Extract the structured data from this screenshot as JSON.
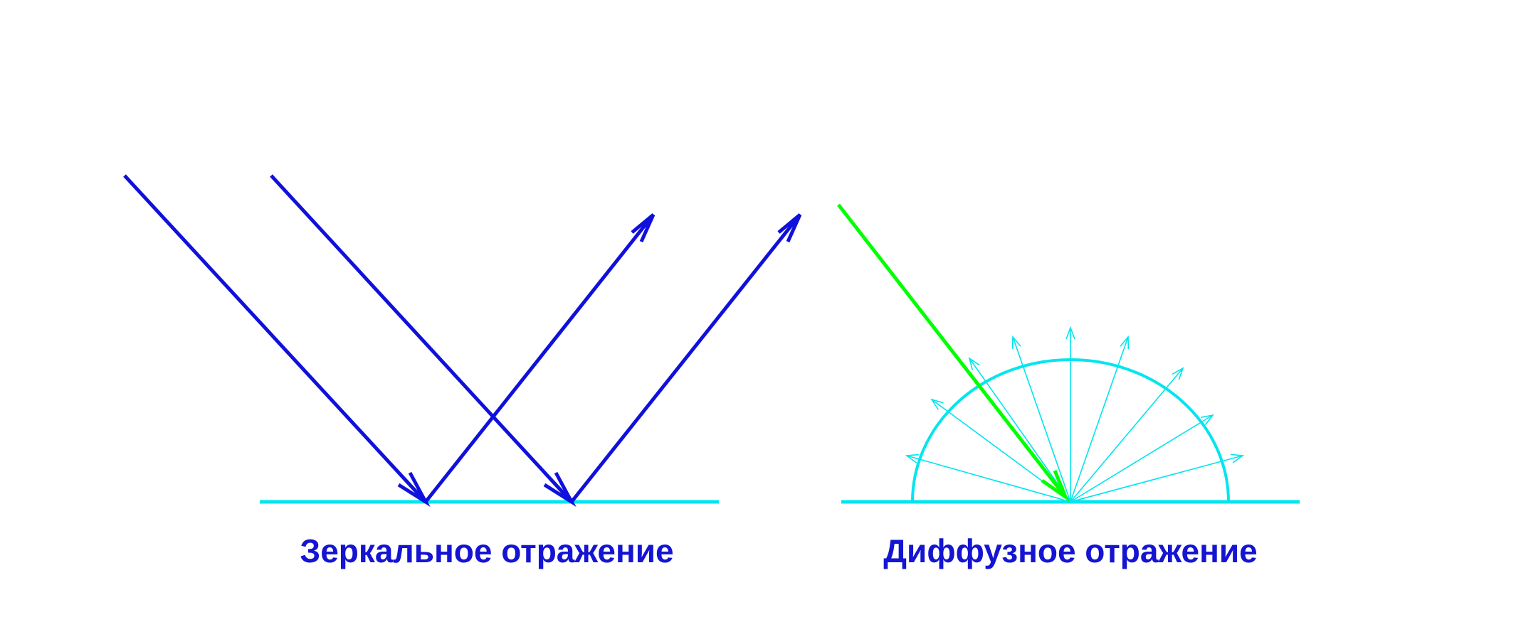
{
  "colors": {
    "specular_ray": "#1010dc",
    "surface": "#00e5ee",
    "diffuse_ray": "#00ff00",
    "scatter_ray": "#00e5ee",
    "caption": "#1414d2",
    "background": "#ffffff"
  },
  "captions": {
    "specular": "Зеркальное отражение",
    "diffuse": "Диффузное отражение"
  }
}
